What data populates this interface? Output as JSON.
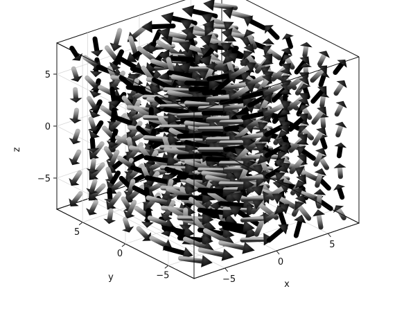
{
  "chart_data": {
    "type": "3d-vector-field",
    "title": "",
    "glyph": "arrow",
    "colors": {
      "glyph_dark": "#000000",
      "glyph_light": "#8a8a8a",
      "frame": "#111111",
      "grid": "#d7d7d7"
    },
    "axes": {
      "x": {
        "label": "x",
        "range": [
          -8,
          8
        ],
        "ticks": [
          -5,
          0,
          5
        ],
        "tick_labels": [
          "−5",
          "0",
          "5"
        ]
      },
      "y": {
        "label": "y",
        "range": [
          -8,
          8
        ],
        "ticks": [
          -5,
          0,
          5
        ],
        "tick_labels": [
          "−5",
          "0",
          "5"
        ]
      },
      "z": {
        "label": "z",
        "range": [
          -8,
          8
        ],
        "ticks": [
          -5,
          0,
          5
        ],
        "tick_labels": [
          "−5",
          "0",
          "5"
        ]
      }
    },
    "grid": true,
    "field_grid": {
      "start": -7,
      "stop": 7,
      "step": 2
    }
  }
}
